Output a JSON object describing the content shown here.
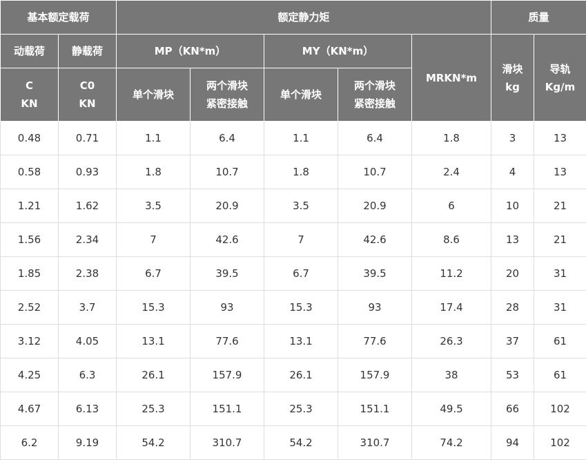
{
  "header": {
    "row1": [
      "基本额定载荷",
      "额定静力矩",
      "质量"
    ],
    "row2": [
      "动载荷",
      "静载荷",
      "MP（KN*m）",
      "MY（KN*m）",
      "MRKN*m",
      "滑块\nkg",
      "导轨\nKg/m"
    ],
    "row3": [
      "C\nKN",
      "C0\nKN",
      "单个滑块",
      "两个滑块\n紧密接触",
      "单个滑块",
      "两个滑块\n紧密接触"
    ]
  },
  "table": {
    "rows": [
      [
        0.48,
        0.71,
        1.1,
        6.4,
        1.1,
        6.4,
        1.8,
        3,
        13
      ],
      [
        0.58,
        0.93,
        1.8,
        10.7,
        1.8,
        10.7,
        2.4,
        4,
        13
      ],
      [
        1.21,
        1.62,
        3.5,
        20.9,
        3.5,
        20.9,
        6,
        10,
        21
      ],
      [
        1.56,
        2.34,
        7,
        42.6,
        7,
        42.6,
        8.6,
        13,
        21
      ],
      [
        1.85,
        2.38,
        6.7,
        39.5,
        6.7,
        39.5,
        11.2,
        20,
        31
      ],
      [
        2.52,
        3.7,
        15.3,
        93,
        15.3,
        93,
        17.4,
        28,
        31
      ],
      [
        3.12,
        4.05,
        13.1,
        77.6,
        13.1,
        77.6,
        26.3,
        37,
        61
      ],
      [
        4.25,
        6.3,
        26.1,
        157.9,
        26.1,
        157.9,
        38,
        53,
        61
      ],
      [
        4.67,
        6.13,
        25.3,
        151.1,
        25.3,
        151.1,
        49.5,
        66,
        102
      ],
      [
        6.2,
        9.19,
        54.2,
        310.7,
        54.2,
        310.7,
        74.2,
        94,
        102
      ]
    ]
  }
}
